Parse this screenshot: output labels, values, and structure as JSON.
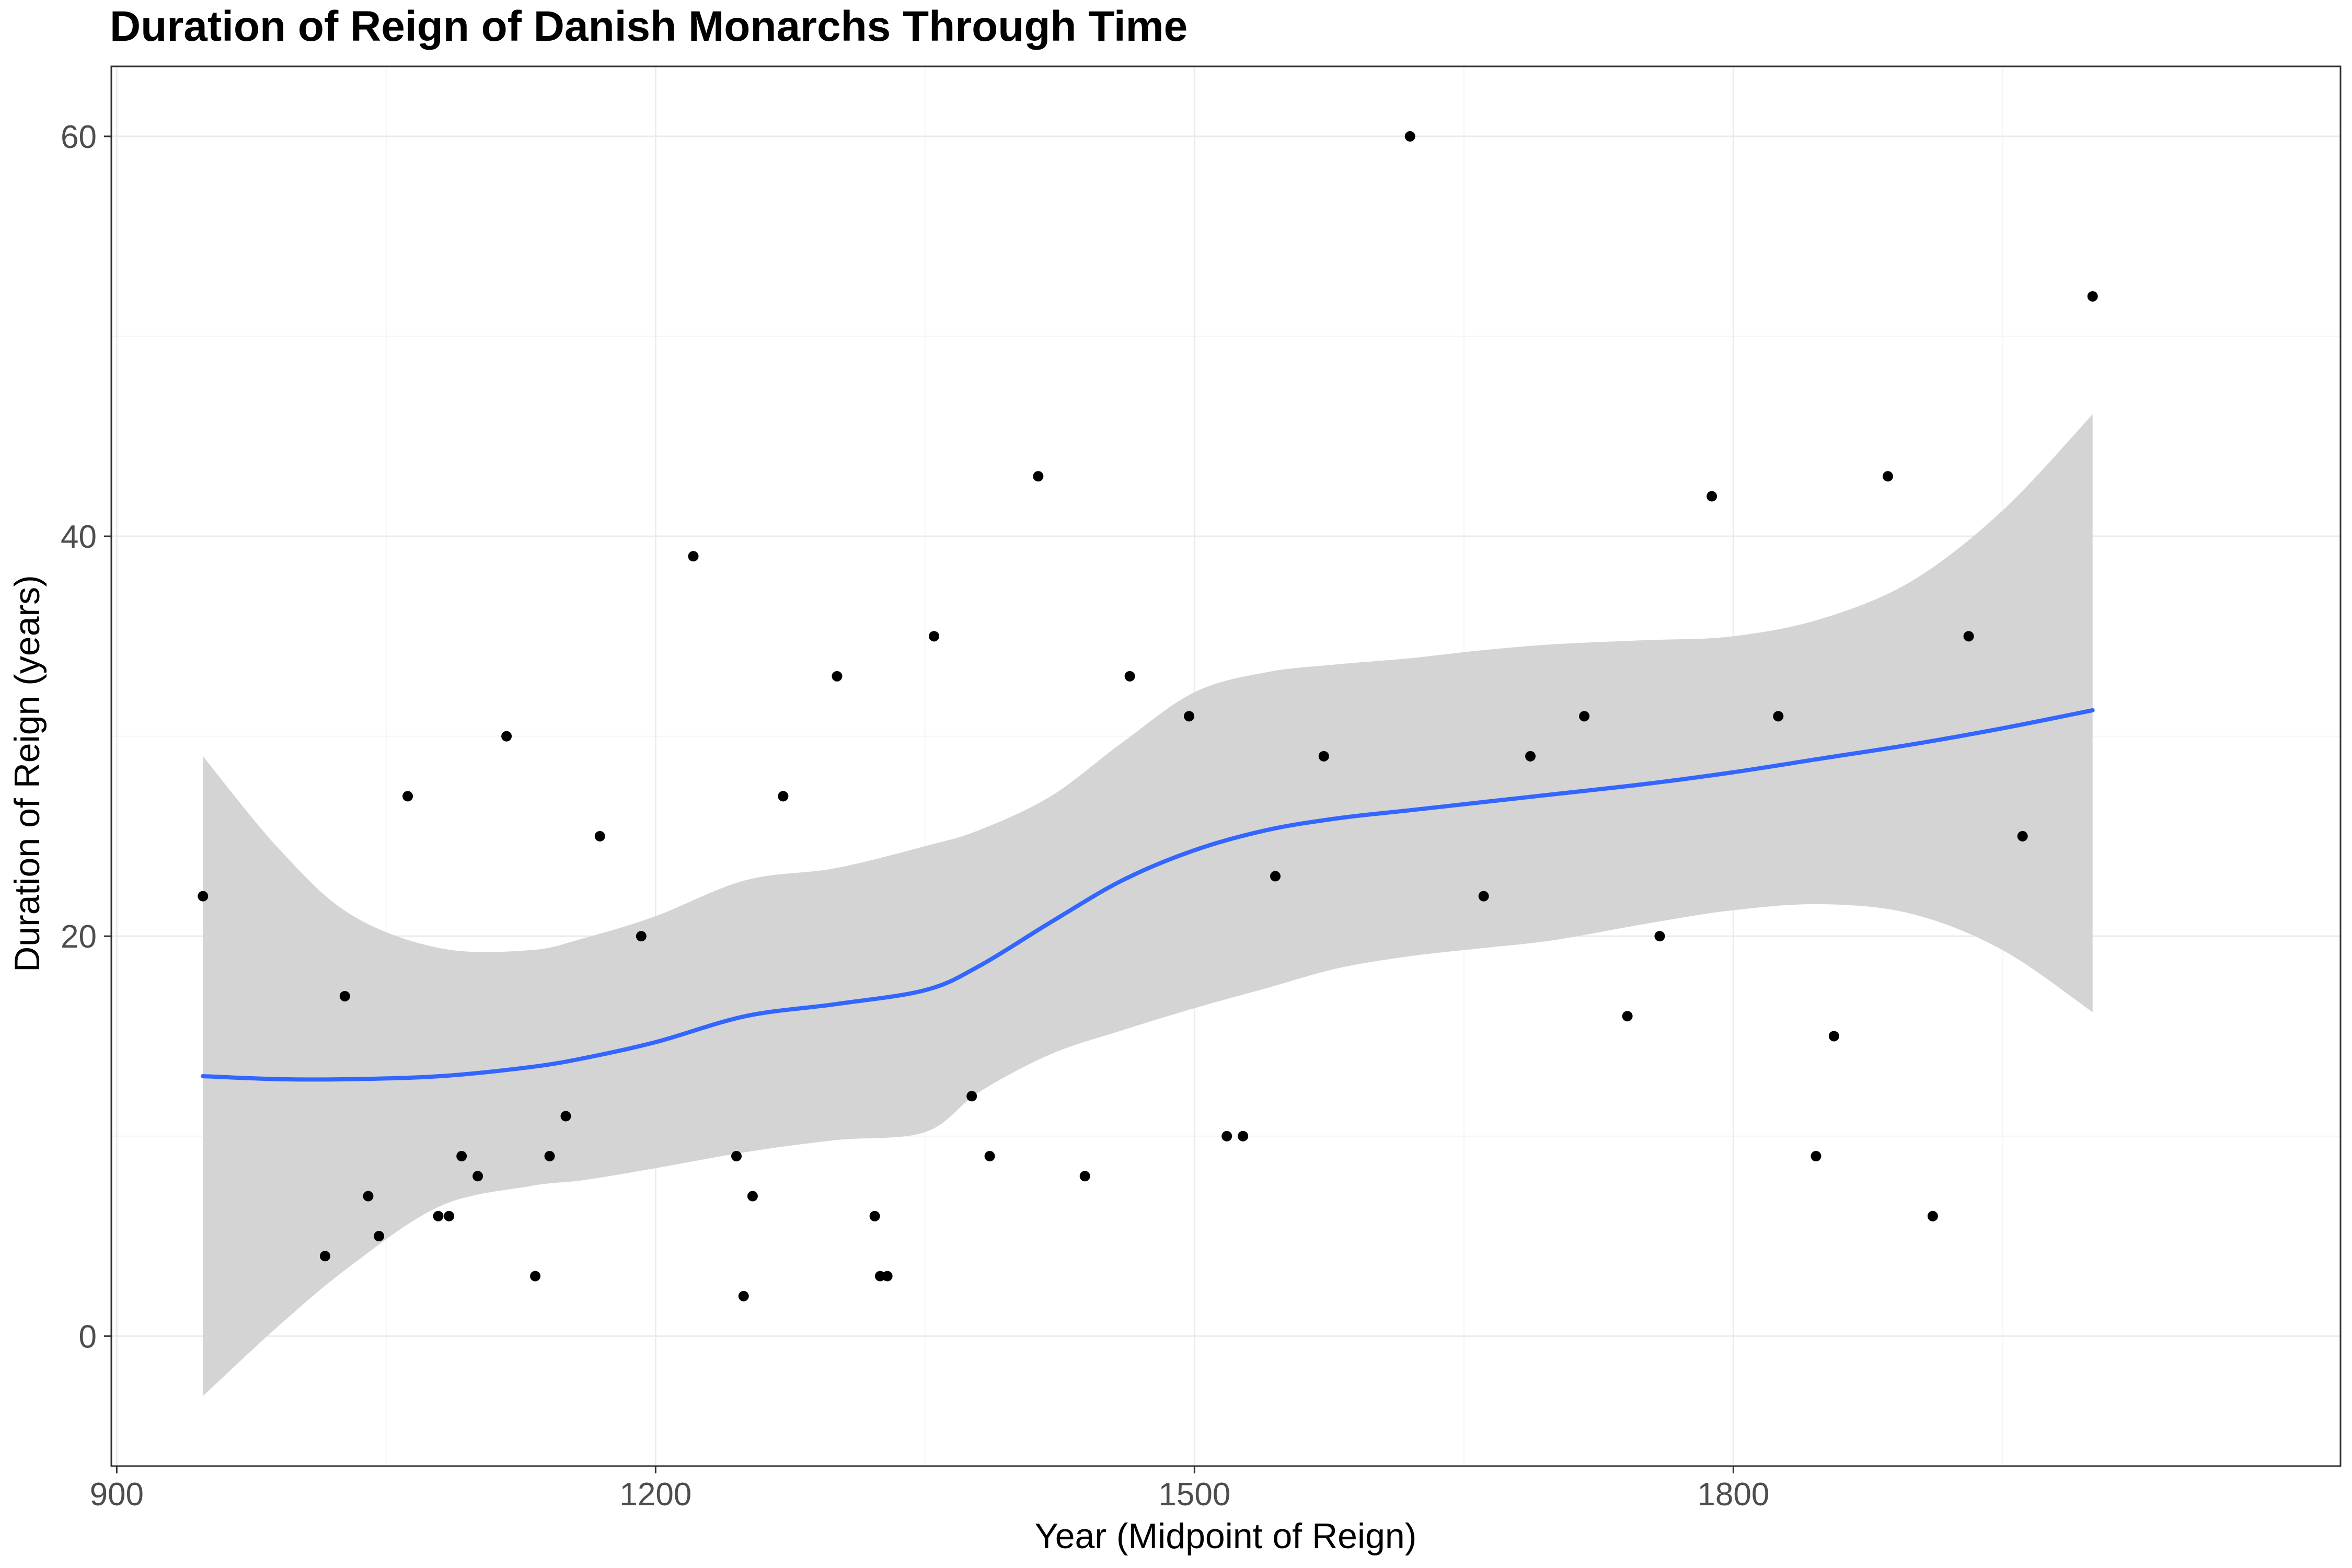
{
  "chart_data": {
    "type": "scatter",
    "title": "Duration of Reign of Danish Monarchs Through Time",
    "xlabel": "Year (Midpoint of Reign)",
    "ylabel": "Duration of Reign (years)",
    "xlim": [
      897,
      2138
    ],
    "ylim": [
      -6.5,
      63.5
    ],
    "x_ticks": [
      900,
      1200,
      1500,
      1800
    ],
    "x_minor_ticks": [
      1050,
      1350,
      1650,
      1950
    ],
    "y_ticks": [
      0,
      20,
      40,
      60
    ],
    "y_minor_ticks": [
      10,
      30,
      50
    ],
    "grid": true,
    "colors": {
      "points": "#000000",
      "smooth_line": "#3366ff",
      "ribbon": "#d4d4d4",
      "grid_major": "#ebebeb",
      "grid_minor": "#f4f4f4",
      "panel_border": "#333333"
    },
    "series": [
      {
        "x": [
          948,
          1016,
          1027,
          1040,
          1046,
          1062,
          1079,
          1085,
          1092,
          1101,
          1117,
          1133,
          1141,
          1150,
          1169,
          1192,
          1221,
          1245,
          1249,
          1254,
          1271,
          1301,
          1322,
          1325,
          1329,
          1355,
          1376,
          1386,
          1413,
          1439,
          1464,
          1497,
          1518,
          1527,
          1545,
          1572,
          1620,
          1661,
          1687,
          1717,
          1741,
          1759,
          1788,
          1825,
          1846,
          1856,
          1886,
          1911,
          1931,
          1961,
          2000
        ],
        "y": [
          22,
          4,
          17,
          7,
          5,
          27,
          6,
          6,
          9,
          8,
          30,
          3,
          9,
          11,
          25,
          20,
          39,
          9,
          2,
          7,
          27,
          33,
          6,
          3,
          3,
          35,
          12,
          9,
          43,
          8,
          33,
          31,
          10,
          10,
          23,
          29,
          60,
          22,
          29,
          31,
          16,
          20,
          42,
          31,
          9,
          15,
          43,
          6,
          35,
          25,
          52
        ]
      }
    ],
    "smooth": {
      "method": "loess",
      "x": [
        948,
        990,
        1030,
        1080,
        1130,
        1160,
        1200,
        1250,
        1300,
        1350,
        1380,
        1420,
        1460,
        1500,
        1540,
        1580,
        1620,
        1660,
        1700,
        1750,
        1800,
        1850,
        1900,
        1950,
        2000
      ],
      "y": [
        13.0,
        12.85,
        12.85,
        13.0,
        13.45,
        13.9,
        14.7,
        16.0,
        16.6,
        17.3,
        18.5,
        20.7,
        22.8,
        24.3,
        25.3,
        25.9,
        26.3,
        26.7,
        27.1,
        27.6,
        28.2,
        28.9,
        29.6,
        30.4,
        31.3
      ],
      "ymin": [
        -3.0,
        0.5,
        3.5,
        6.5,
        7.5,
        7.8,
        8.4,
        9.2,
        9.8,
        10.2,
        12.2,
        14.1,
        15.3,
        16.4,
        17.4,
        18.4,
        19.0,
        19.4,
        19.8,
        20.6,
        21.3,
        21.6,
        21.1,
        19.3,
        16.2
      ],
      "ymax": [
        29.0,
        24.4,
        21.1,
        19.4,
        19.3,
        19.9,
        21.0,
        22.8,
        23.4,
        24.5,
        25.3,
        27.0,
        29.7,
        32.2,
        33.2,
        33.6,
        33.9,
        34.3,
        34.6,
        34.8,
        35.0,
        35.9,
        37.8,
        41.3,
        46.1
      ]
    }
  }
}
